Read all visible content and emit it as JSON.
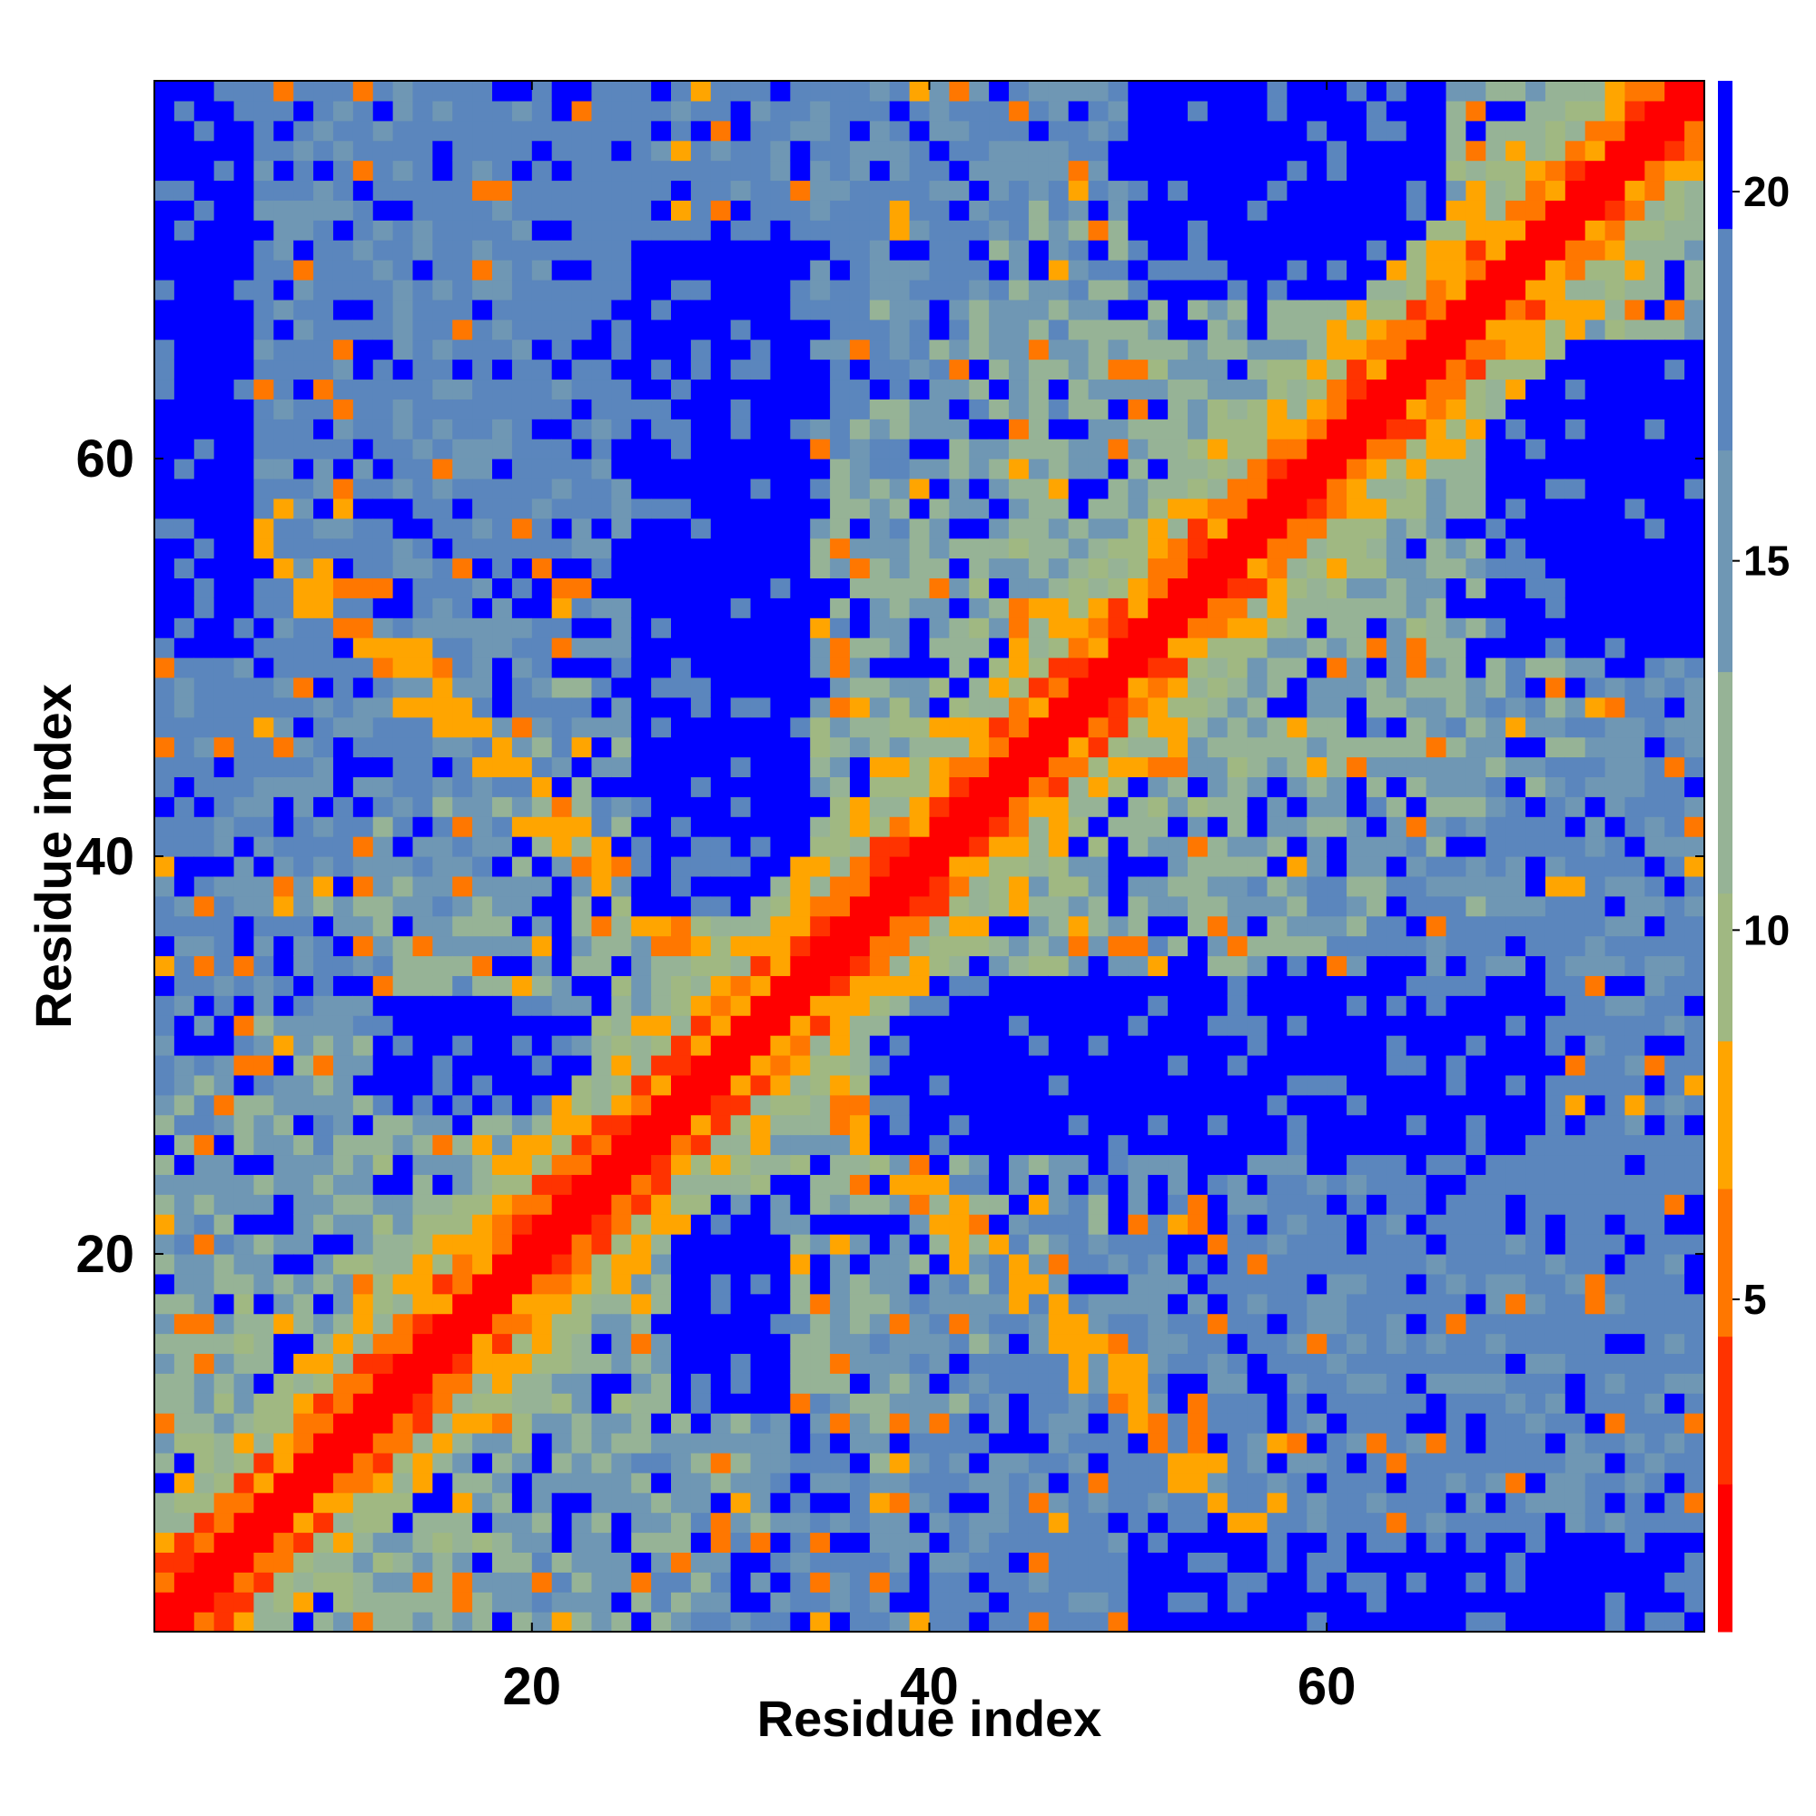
{
  "chart_data": {
    "type": "heatmap",
    "title": "",
    "xlabel": "Residue index",
    "ylabel": "Residue index",
    "n_residues": 78,
    "xlim": [
      1,
      78
    ],
    "ylim": [
      1,
      78
    ],
    "xticks": [
      20,
      40,
      60
    ],
    "yticks": [
      20,
      40,
      60
    ],
    "colorbar": {
      "ticks": [
        5,
        10,
        15,
        20
      ],
      "range": [
        0.5,
        21.5
      ],
      "bins": [
        {
          "from": 0.5,
          "to": 2.5,
          "color": "#ff0000"
        },
        {
          "from": 2.5,
          "to": 4.5,
          "color": "#ff3300"
        },
        {
          "from": 4.5,
          "to": 6.5,
          "color": "#ff7700"
        },
        {
          "from": 6.5,
          "to": 8.5,
          "color": "#ffa500"
        },
        {
          "from": 8.5,
          "to": 10.5,
          "color": "#a0b882"
        },
        {
          "from": 10.5,
          "to": 13.5,
          "color": "#96b396"
        },
        {
          "from": 13.5,
          "to": 16.5,
          "color": "#6f97b4"
        },
        {
          "from": 16.5,
          "to": 19.5,
          "color": "#5b86bd"
        },
        {
          "from": 19.5,
          "to": 21.5,
          "color": "#0000ff"
        }
      ]
    },
    "description_of_values": "Pairwise residue distance map (symmetric). Diagonal |i-j|<=1 ~ 1; |i-j|=2-3 in 3-8; helical/contact regions orange; large blue (>20) blocks at x 20-33 / y 40-75, x 40-75 / y 22-35 and corners.",
    "regions": [
      {
        "name": "diagonal",
        "value": 1
      },
      {
        "name": "near-diagonal",
        "value": 6
      },
      {
        "name": "blue-block-upper",
        "x": [
          25,
          33
        ],
        "y": [
          37,
          70
        ],
        "value": 21
      },
      {
        "name": "blue-block-right",
        "x": [
          37,
          70
        ],
        "y": [
          26,
          33
        ],
        "value": 21
      },
      {
        "name": "blue-block-left",
        "x": [
          12,
          21
        ],
        "y": [
          27,
          31
        ],
        "value": 21
      },
      {
        "name": "blue-block-lower",
        "x": [
          27,
          32
        ],
        "y": [
          12,
          20
        ],
        "value": 21
      },
      {
        "name": "blue-corner-top-left",
        "x": [
          1,
          5
        ],
        "y": [
          50,
          78
        ],
        "value": 21
      },
      {
        "name": "blue-corner-bottom-right",
        "x": [
          52,
          78
        ],
        "y": [
          1,
          5
        ],
        "value": 21
      },
      {
        "name": "blue-top-right-band",
        "x": [
          50,
          65
        ],
        "y": [
          68,
          78
        ],
        "value": 21
      }
    ]
  }
}
